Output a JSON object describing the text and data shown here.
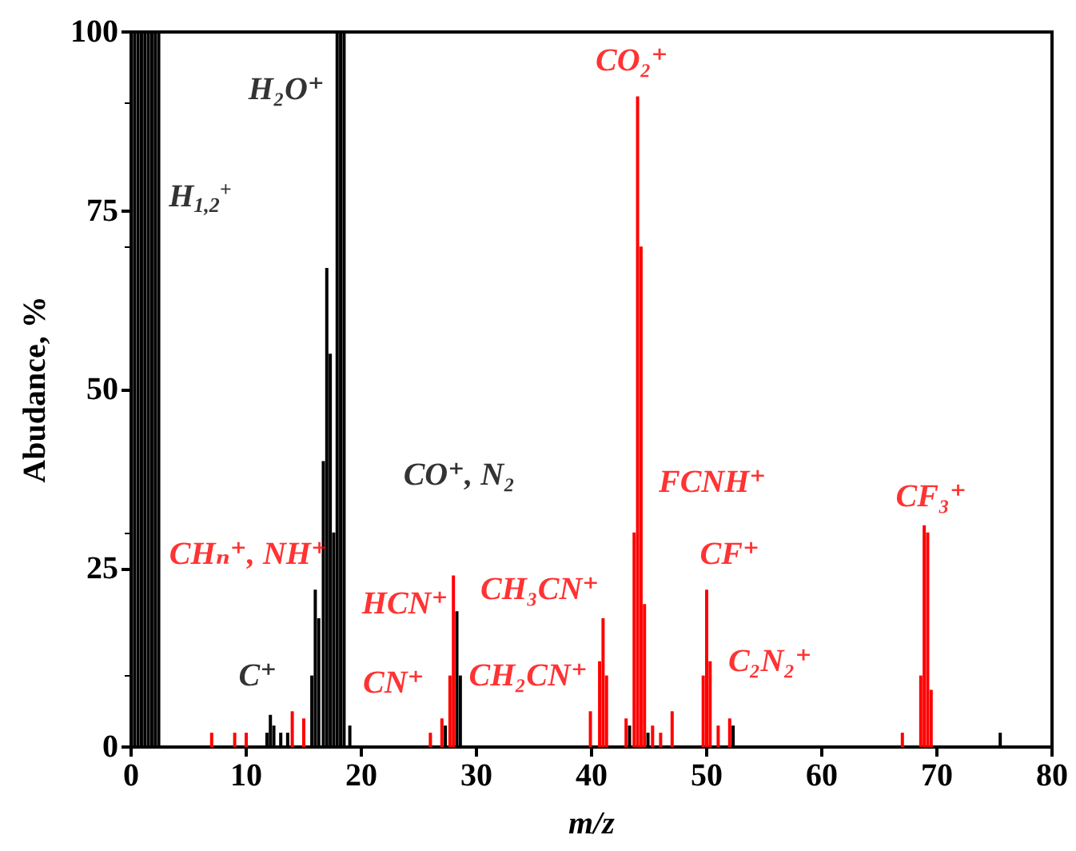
{
  "chart_data": {
    "type": "bar",
    "xlabel": "m/z",
    "ylabel": "Abudance, %",
    "xlim": [
      0,
      80
    ],
    "xticks": [
      0,
      10,
      20,
      30,
      40,
      50,
      60,
      70,
      80
    ],
    "ylim": [
      0,
      100
    ],
    "yticks": [
      0,
      25,
      50,
      75,
      100
    ],
    "grid": false,
    "series": [
      {
        "color": "#000000",
        "x": [
          0.3,
          0.6,
          0.9,
          1.2,
          1.5,
          1.8,
          2.1,
          2.4,
          11.8,
          12.1,
          12.4,
          13,
          13.6,
          15.7,
          16,
          16.3,
          16.7,
          17,
          17.3,
          17.6,
          17.9,
          18.2,
          18.5,
          19,
          27.3,
          28.3,
          28.6,
          43.3,
          44.9,
          52.3,
          75.5
        ],
        "values": [
          100,
          100,
          100,
          100,
          100,
          100,
          100,
          100,
          2,
          4.5,
          3,
          2,
          2,
          10,
          22,
          18,
          40,
          67,
          55,
          30,
          100,
          100,
          100,
          3,
          3,
          19,
          10,
          3,
          2,
          3,
          2
        ]
      },
      {
        "color": "#ff0000",
        "x": [
          7,
          9,
          10,
          14,
          15,
          26,
          27,
          27.7,
          28,
          39.9,
          40.7,
          41,
          41.3,
          43,
          43.7,
          44,
          44.3,
          44.6,
          45.3,
          46,
          47,
          49.7,
          50,
          50.3,
          51,
          52,
          67,
          68.6,
          68.9,
          69.2,
          69.5
        ],
        "values": [
          2,
          2,
          2,
          5,
          4,
          2,
          4,
          10,
          24,
          5,
          12,
          18,
          10,
          4,
          30,
          91,
          70,
          20,
          3,
          2,
          5,
          10,
          22,
          12,
          3,
          4,
          2,
          10,
          31,
          30,
          8
        ]
      }
    ],
    "annotations": [
      "H$_{1,2}$$^{+}$",
      "H₂O⁺",
      "CO₂⁺",
      "CO⁺, N₂",
      "CHₙ⁺, NH⁺",
      "C⁺",
      "HCN⁺",
      "CN⁺",
      "CH₂CN⁺",
      "CH₃CN⁺",
      "FCNH⁺",
      "CF⁺",
      "C₂N₂⁺",
      "CF₃⁺"
    ]
  }
}
